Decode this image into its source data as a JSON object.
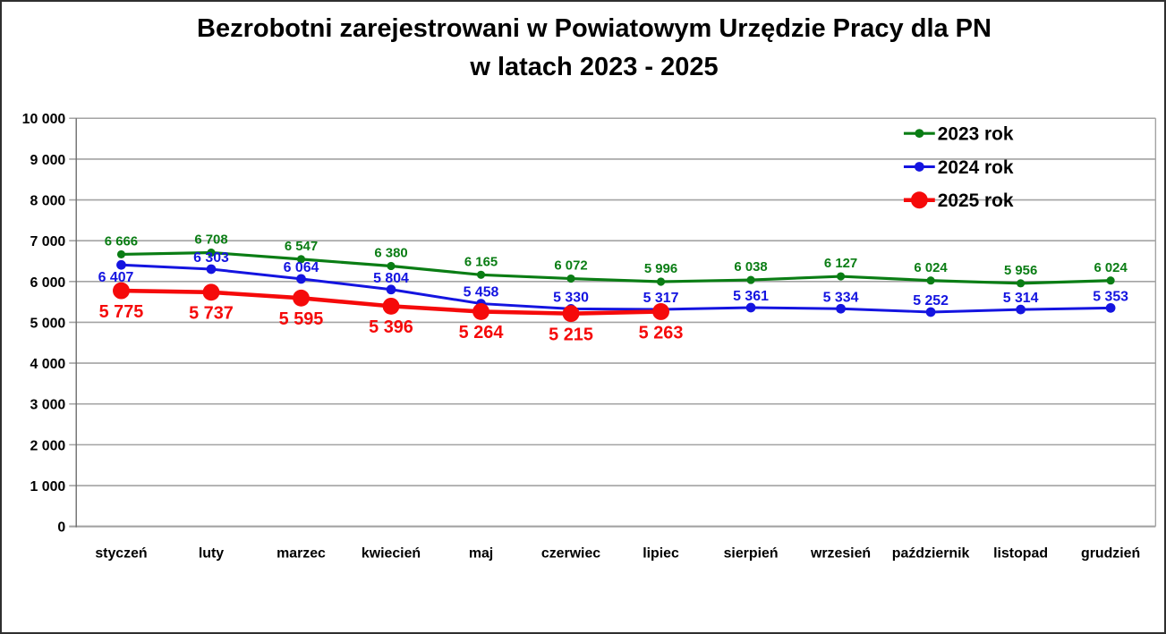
{
  "title": {
    "line1": "Bezrobotni zarejestrowani w Powiatowym Urzędzie Pracy dla PN",
    "line2": "w latach 2023 - 2025"
  },
  "chart_data": {
    "type": "line",
    "title": "Bezrobotni zarejestrowani w Powiatowym Urzędzie Pracy dla PN w latach 2023 - 2025",
    "categories": [
      "styczeń",
      "luty",
      "marzec",
      "kwiecień",
      "maj",
      "czerwiec",
      "lipiec",
      "sierpień",
      "wrzesień",
      "październik",
      "listopad",
      "grudzień"
    ],
    "series": [
      {
        "name": "2023 rok",
        "color": "#0a7d14",
        "values": [
          6666,
          6708,
          6547,
          6380,
          6165,
          6072,
          5996,
          6038,
          6127,
          6024,
          5956,
          6024
        ],
        "line_width": 3.2,
        "marker_radius": 4.6,
        "label_font_size": 15,
        "label_dy": -10
      },
      {
        "name": "2024 rok",
        "color": "#1414e0",
        "values": [
          6407,
          6303,
          6064,
          5804,
          5458,
          5330,
          5317,
          5361,
          5334,
          5252,
          5314,
          5353
        ],
        "line_width": 3.0,
        "marker_radius": 5.4,
        "label_font_size": 16,
        "label_dy": -8
      },
      {
        "name": "2025 rok",
        "color": "#f50a0a",
        "values": [
          5775,
          5737,
          5595,
          5396,
          5264,
          5215,
          5263
        ],
        "line_width": 4.6,
        "marker_radius": 9.5,
        "label_font_size": 20,
        "label_dy": 30
      }
    ],
    "yaxis": {
      "min": 0,
      "max": 10000,
      "step": 1000,
      "tick_labels": [
        "0",
        "1 000",
        "2 000",
        "3 000",
        "4 000",
        "5 000",
        "6 000",
        "7 000",
        "8 000",
        "9 000",
        "10 000"
      ]
    },
    "xlabel": "",
    "ylabel": "",
    "grid": true,
    "grid_color": "#a3a3a3",
    "axis_color": "#6d6d6d",
    "legend_position": "top-right-inside",
    "data_labels": true,
    "number_format": "space-thousands"
  }
}
